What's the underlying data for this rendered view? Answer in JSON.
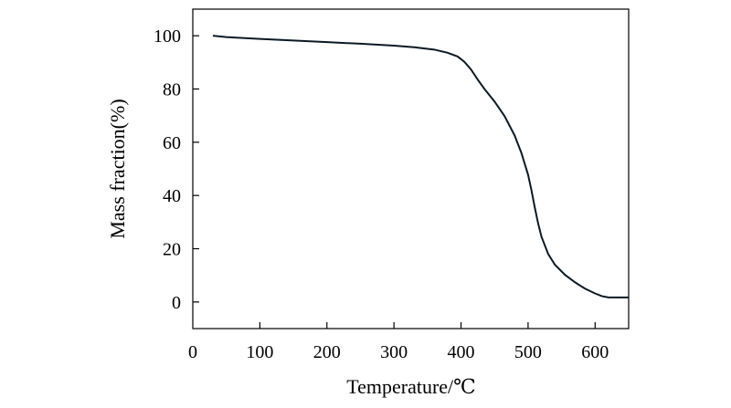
{
  "chart_data": {
    "type": "line",
    "title": "",
    "xlabel": "Temperature/℃",
    "ylabel": "Mass fraction(%)",
    "xlim": [
      0,
      650
    ],
    "ylim": [
      -10,
      110
    ],
    "x_ticks": [
      0,
      100,
      200,
      300,
      400,
      500,
      600
    ],
    "y_ticks": [
      0,
      20,
      40,
      60,
      80,
      100
    ],
    "x_tick_labels": [
      "0",
      "100",
      "200",
      "300",
      "400",
      "500",
      "600"
    ],
    "y_tick_labels": [
      "0",
      "20",
      "40",
      "60",
      "80",
      "100"
    ],
    "grid": false,
    "legend": "none",
    "line_color": "#0b1a24",
    "series": [
      {
        "x": [
          30,
          50,
          100,
          150,
          200,
          250,
          300,
          330,
          360,
          380,
          395,
          405,
          415,
          425,
          435,
          450,
          465,
          480,
          490,
          500,
          505,
          510,
          515,
          520,
          530,
          540,
          555,
          570,
          585,
          600,
          610,
          620,
          630,
          640,
          650
        ],
        "y": [
          100,
          99.5,
          98.8,
          98.2,
          97.6,
          97.0,
          96.3,
          95.7,
          94.8,
          93.6,
          92.2,
          90.2,
          87.3,
          83.5,
          80.0,
          75.3,
          69.8,
          62.5,
          56.0,
          47.8,
          42.0,
          35.5,
          29.5,
          24.5,
          18.0,
          14.0,
          10.2,
          7.4,
          5.0,
          3.2,
          2.2,
          1.7,
          1.7,
          1.7,
          1.7
        ]
      }
    ]
  }
}
